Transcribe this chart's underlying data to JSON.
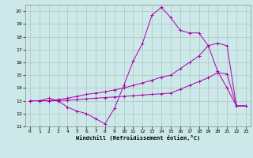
{
  "xlabel": "Windchill (Refroidissement éolien,°C)",
  "background_color": "#cce8e8",
  "line_color": "#aa00aa",
  "grid_color": "#aabbbb",
  "xlim": [
    -0.5,
    23.5
  ],
  "ylim": [
    11,
    20.5
  ],
  "yticks": [
    11,
    12,
    13,
    14,
    15,
    16,
    17,
    18,
    19,
    20
  ],
  "xticks": [
    0,
    1,
    2,
    3,
    4,
    5,
    6,
    7,
    8,
    9,
    10,
    11,
    12,
    13,
    14,
    15,
    16,
    17,
    18,
    19,
    20,
    21,
    22,
    23
  ],
  "series1_x": [
    0,
    1,
    2,
    3,
    4,
    5,
    6,
    7,
    8,
    9,
    10,
    11,
    12,
    13,
    14,
    15,
    16,
    17,
    18,
    19,
    20,
    21,
    22,
    23
  ],
  "series1_y": [
    13.0,
    13.0,
    13.2,
    13.0,
    12.5,
    12.2,
    12.0,
    11.6,
    11.2,
    12.4,
    14.2,
    16.1,
    17.5,
    19.7,
    20.3,
    19.5,
    18.5,
    18.3,
    18.3,
    17.3,
    15.3,
    14.0,
    12.6,
    12.6
  ],
  "series2_x": [
    0,
    1,
    2,
    3,
    4,
    5,
    6,
    7,
    8,
    9,
    10,
    11,
    12,
    13,
    14,
    15,
    16,
    17,
    18,
    19,
    20,
    21,
    22,
    23
  ],
  "series2_y": [
    13.0,
    13.0,
    13.0,
    13.1,
    13.2,
    13.35,
    13.5,
    13.6,
    13.7,
    13.85,
    14.0,
    14.2,
    14.4,
    14.6,
    14.85,
    15.0,
    15.5,
    16.0,
    16.5,
    17.3,
    17.5,
    17.3,
    12.6,
    12.6
  ],
  "series3_x": [
    0,
    1,
    2,
    3,
    4,
    5,
    6,
    7,
    8,
    9,
    10,
    11,
    12,
    13,
    14,
    15,
    16,
    17,
    18,
    19,
    20,
    21,
    22,
    23
  ],
  "series3_y": [
    13.0,
    13.0,
    13.0,
    13.0,
    13.05,
    13.1,
    13.15,
    13.2,
    13.25,
    13.3,
    13.35,
    13.4,
    13.45,
    13.5,
    13.55,
    13.6,
    13.9,
    14.2,
    14.5,
    14.8,
    15.2,
    15.1,
    12.6,
    12.6
  ]
}
